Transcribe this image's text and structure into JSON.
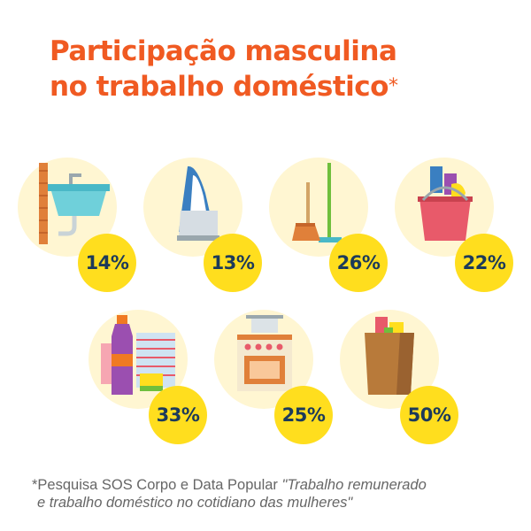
{
  "title_line1": "Participação masculina",
  "title_line2": "no trabalho doméstico",
  "title_asterisk": "*",
  "chart_data": {
    "type": "table",
    "categories": [
      "Lavar louça",
      "Passar roupa",
      "Limpar a casa",
      "Limpar banheiro",
      "Lavar roupa",
      "Cozinhar",
      "Fazer compras"
    ],
    "values": [
      14,
      13,
      26,
      22,
      33,
      25,
      50
    ],
    "labels": [
      "14%",
      "13%",
      "26%",
      "22%",
      "33%",
      "25%",
      "50%"
    ],
    "unit": "%"
  },
  "icons": [
    "sink-icon",
    "iron-icon",
    "broom-icon",
    "cleaning-bucket-icon",
    "laundry-icon",
    "stove-icon",
    "grocery-bag-icon"
  ],
  "colors": {
    "title": "#f05a22",
    "badge": "#ffde1e",
    "circle": "#fff6d2",
    "badge_text": "#1c3a5a"
  },
  "footnote": {
    "prefix": "*Pesquisa SOS Corpo e Data Popular ",
    "italic_line1": "\"Trabalho remunerado",
    "italic_line2": "e trabalho doméstico no cotidiano das mulheres\""
  }
}
